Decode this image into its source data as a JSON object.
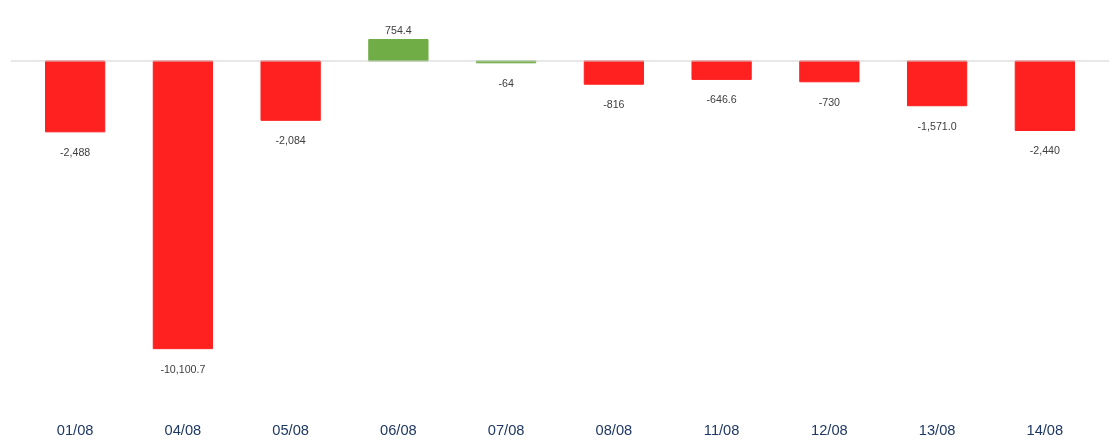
{
  "chart_data": {
    "type": "bar",
    "categories": [
      "01/08",
      "04/08",
      "05/08",
      "06/08",
      "07/08",
      "08/08",
      "11/08",
      "12/08",
      "13/08",
      "14/08"
    ],
    "values": [
      -2488,
      -10100.7,
      -2084,
      754.4,
      -64,
      -816,
      -646.6,
      -730,
      -1571.0,
      -2440
    ],
    "colors": [
      "#ff2020",
      "#ff2020",
      "#ff2020",
      "#70ad47",
      "#70ad47",
      "#ff2020",
      "#ff2020",
      "#ff2020",
      "#ff2020",
      "#ff2020"
    ],
    "value_labels": [
      "-2,488",
      "-10,100.7",
      "-2,084",
      "754.4",
      "-64",
      "-816",
      "-646.6",
      "-730",
      "-1,571.0",
      "-2,440"
    ],
    "grid": false
  }
}
